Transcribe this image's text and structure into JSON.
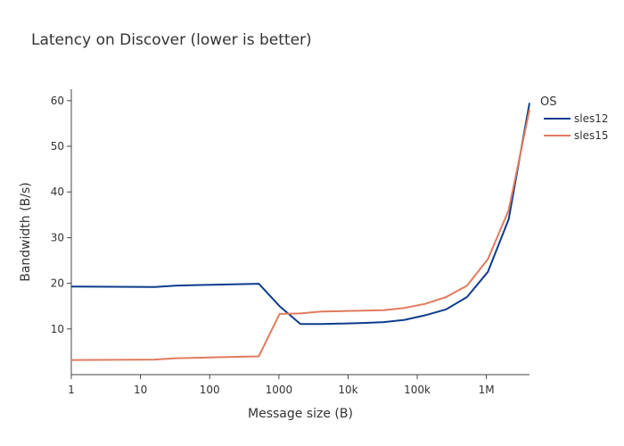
{
  "chart_data": {
    "type": "line",
    "title": "Latency on Discover (lower is better)",
    "xlabel": "Message size (B)",
    "ylabel": "Bandwidth (B/s)",
    "x_scale": "log",
    "xlim": [
      1,
      4194304
    ],
    "ylim": [
      0,
      62.5
    ],
    "x_ticks": [
      {
        "value": 1,
        "label": "1"
      },
      {
        "value": 10,
        "label": "10"
      },
      {
        "value": 100,
        "label": "100"
      },
      {
        "value": 1000,
        "label": "1000"
      },
      {
        "value": 10000,
        "label": "10k"
      },
      {
        "value": 100000,
        "label": "100k"
      },
      {
        "value": 1000000,
        "label": "1M"
      }
    ],
    "y_ticks": [
      10,
      20,
      30,
      40,
      50,
      60
    ],
    "grid": false,
    "legend": {
      "title": "OS",
      "placement": "top-right"
    },
    "x": [
      1,
      16,
      32,
      64,
      128,
      256,
      512,
      1024,
      2048,
      4096,
      8192,
      16384,
      32768,
      65536,
      131072,
      262144,
      524288,
      1048576,
      2097152,
      4194304
    ],
    "series": [
      {
        "name": "sles12",
        "color": "#0d3c8c",
        "values": [
          19.3,
          19.2,
          19.5,
          19.6,
          19.7,
          19.8,
          19.9,
          15.0,
          11.1,
          11.1,
          11.2,
          11.3,
          11.5,
          12.0,
          13.0,
          14.3,
          17.0,
          22.5,
          34.0,
          59.5
        ]
      },
      {
        "name": "sles15",
        "color": "#e07b5f",
        "values": [
          3.2,
          3.3,
          3.6,
          3.7,
          3.8,
          3.9,
          4.0,
          13.3,
          13.4,
          13.8,
          13.9,
          14.0,
          14.1,
          14.6,
          15.5,
          17.0,
          19.5,
          25.3,
          36.0,
          58.0
        ]
      }
    ]
  }
}
